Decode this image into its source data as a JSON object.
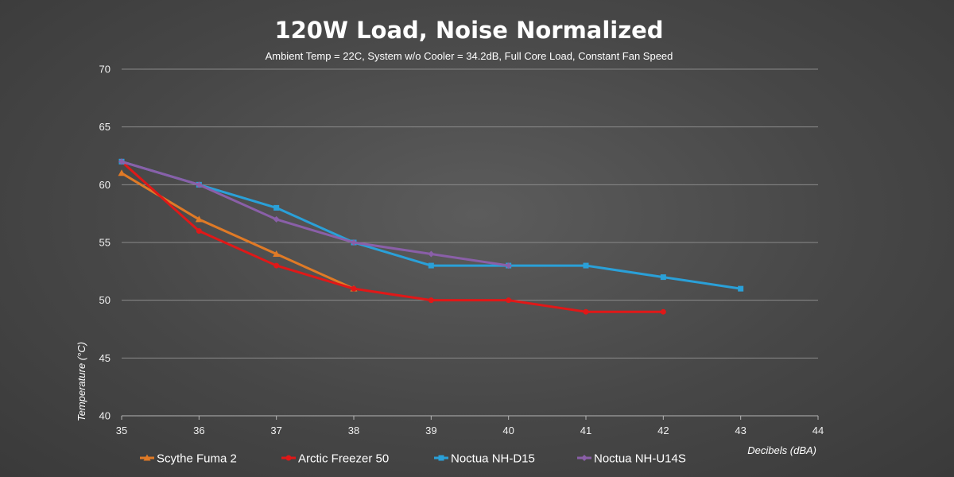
{
  "chart_data": {
    "type": "line",
    "title": "120W Load, Noise Normalized",
    "subtitle": "Ambient Temp = 22C, System w/o Cooler = 34.2dB, Full Core Load, Constant Fan Speed",
    "xlabel": "Decibels (dBA)",
    "ylabel": "Temperature (°C)",
    "xlim": [
      35,
      44
    ],
    "ylim": [
      40,
      70
    ],
    "x_ticks": [
      35,
      36,
      37,
      38,
      39,
      40,
      41,
      42,
      43,
      44
    ],
    "y_ticks": [
      40,
      45,
      50,
      55,
      60,
      65,
      70
    ],
    "grid": true,
    "legend_position": "bottom",
    "series": [
      {
        "name": "Scythe Fuma 2",
        "color": "#e07a26",
        "marker": "triangle",
        "x": [
          35,
          36,
          37,
          38
        ],
        "y": [
          61,
          57,
          54,
          51
        ]
      },
      {
        "name": "Arctic Freezer 50",
        "color": "#e01818",
        "marker": "circle",
        "x": [
          35,
          36,
          37,
          38,
          39,
          40,
          41,
          42
        ],
        "y": [
          62,
          56,
          53,
          51,
          50,
          50,
          49,
          49
        ]
      },
      {
        "name": "Noctua NH-D15",
        "color": "#2aa0d8",
        "marker": "square",
        "x": [
          35,
          36,
          37,
          38,
          39,
          40,
          41,
          42,
          43
        ],
        "y": [
          62,
          60,
          58,
          55,
          53,
          53,
          53,
          52,
          51
        ]
      },
      {
        "name": "Noctua NH-U14S",
        "color": "#8a5fa8",
        "marker": "diamond",
        "x": [
          35,
          36,
          37,
          38,
          39,
          40
        ],
        "y": [
          62,
          60,
          57,
          55,
          54,
          53
        ]
      }
    ]
  }
}
